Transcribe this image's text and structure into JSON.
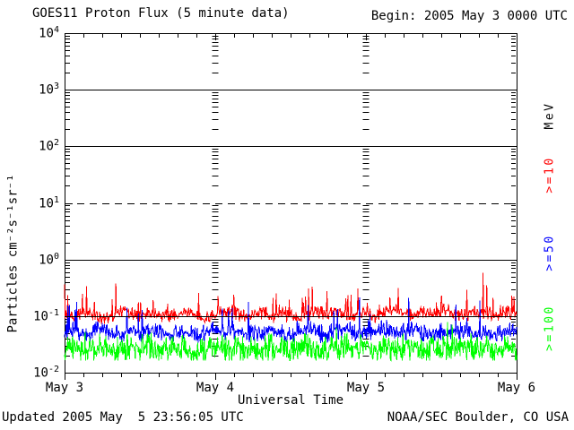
{
  "header": {
    "title": "GOES11 Proton Flux (5 minute data)",
    "begin": "Begin: 2005 May 3 0000 UTC"
  },
  "footer": {
    "updated": "Updated 2005 May  5 23:56:05 UTC",
    "noaa": "NOAA/SEC Boulder, CO USA"
  },
  "chart_data": {
    "type": "line",
    "title": "GOES11 Proton Flux (5 minute data)",
    "xlabel": "Universal Time",
    "ylabel": "Particles cm⁻²s⁻¹sr⁻¹",
    "x_ticks": [
      "May 3",
      "May 4",
      "May 5",
      "May 6"
    ],
    "x_range_days": 3,
    "x_minor_tick_hours": 3,
    "y_scale": "log",
    "y_log_range": [
      -2,
      4
    ],
    "y_tick_exponents": [
      4,
      3,
      2,
      1,
      0,
      -1,
      -2
    ],
    "gridlines": [
      {
        "exp": 3,
        "style": "solid"
      },
      {
        "exp": 2,
        "style": "solid"
      },
      {
        "exp": 1,
        "style": "dashed"
      },
      {
        "exp": 0,
        "style": "solid"
      },
      {
        "exp": -1,
        "style": "solid_over_data"
      }
    ],
    "day_marker_x_days": [
      1,
      2
    ],
    "legend_title": "MeV",
    "legend": [
      {
        "label": "MeV",
        "color": "#000000"
      },
      {
        "label": ">=10",
        "color": "#ff0000"
      },
      {
        "label": ">=50",
        "color": "#0000ff"
      },
      {
        "label": ">=100",
        "color": "#00ff00"
      }
    ],
    "points_per_series": 864,
    "seed": 20050503,
    "series": [
      {
        "name": ">=10 MeV",
        "color": "#ff0000",
        "median": 0.105,
        "range": [
          0.07,
          0.55
        ],
        "anchors": [
          0.11,
          0.1,
          0.12,
          0.11,
          0.09,
          0.1,
          0.13,
          0.11,
          0.1,
          0.12,
          0.11,
          0.1,
          0.11,
          0.12,
          0.1,
          0.09,
          0.11,
          0.13,
          0.12,
          0.1,
          0.11,
          0.12,
          0.1,
          0.11,
          0.1,
          0.09,
          0.11,
          0.12,
          0.11,
          0.13,
          0.1,
          0.11,
          0.12,
          0.1,
          0.11,
          0.13,
          0.11,
          0.1,
          0.12,
          0.11,
          0.13,
          0.12,
          0.1,
          0.11,
          0.12,
          0.11,
          0.1,
          0.12,
          0.11
        ],
        "noise_log_amp": 0.14,
        "spike_prob": 0.05,
        "spike_log_max": 0.62,
        "floor": 0.07,
        "cap": 0.58
      },
      {
        "name": ">=50 MeV",
        "color": "#0000ff",
        "median": 0.052,
        "range": [
          0.024,
          0.2
        ],
        "anchors": [
          0.05,
          0.055,
          0.048,
          0.052,
          0.06,
          0.05,
          0.045,
          0.055,
          0.05,
          0.058,
          0.052,
          0.048,
          0.055,
          0.05,
          0.046,
          0.052,
          0.058,
          0.05,
          0.055,
          0.048,
          0.052,
          0.05,
          0.056,
          0.05,
          0.047,
          0.052,
          0.055,
          0.05,
          0.048,
          0.054,
          0.058,
          0.05,
          0.052,
          0.048,
          0.055,
          0.05,
          0.053,
          0.058,
          0.05,
          0.048,
          0.052,
          0.055,
          0.05,
          0.053,
          0.048,
          0.052,
          0.05,
          0.054,
          0.05
        ],
        "noise_log_amp": 0.18,
        "spike_prob": 0.04,
        "spike_log_max": 0.55,
        "floor": 0.024,
        "cap": 0.22
      },
      {
        "name": ">=100 MeV",
        "color": "#00ff00",
        "median": 0.027,
        "range": [
          0.0165,
          0.09
        ],
        "anchors": [
          0.026,
          0.028,
          0.024,
          0.027,
          0.03,
          0.026,
          0.023,
          0.028,
          0.026,
          0.029,
          0.027,
          0.024,
          0.028,
          0.026,
          0.023,
          0.027,
          0.03,
          0.026,
          0.028,
          0.024,
          0.027,
          0.026,
          0.029,
          0.026,
          0.024,
          0.027,
          0.028,
          0.026,
          0.024,
          0.028,
          0.03,
          0.026,
          0.027,
          0.024,
          0.028,
          0.026,
          0.027,
          0.03,
          0.026,
          0.024,
          0.027,
          0.028,
          0.026,
          0.027,
          0.024,
          0.027,
          0.026,
          0.028,
          0.026
        ],
        "noise_log_amp": 0.28,
        "spike_prob": 0.02,
        "spike_log_max": 0.32,
        "floor": 0.0165,
        "cap": 0.1
      }
    ]
  }
}
